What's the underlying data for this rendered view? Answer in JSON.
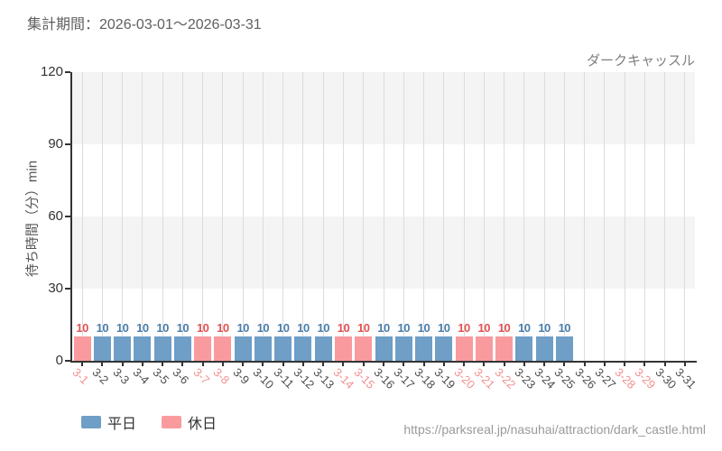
{
  "header": {
    "period_label": "集計期間：2026-03-01〜2026-03-31",
    "attraction_name": "ダークキャッスル"
  },
  "footer": {
    "source_url": "https://parksreal.jp/nasuhai/attraction/dark_castle.html"
  },
  "legend": {
    "weekday_label": "平日",
    "holiday_label": "休日",
    "position": "bottom-left"
  },
  "colors": {
    "weekday_bar": "#6f9ec6",
    "holiday_bar": "#f99b9e",
    "weekday_value_label": "#4a7dab",
    "holiday_value_label": "#e25252",
    "weekday_tick_label": "#4d4d4d",
    "holiday_tick_label": "#f29090",
    "axis": "#333333",
    "band_gray": "#f4f4f4",
    "band_white": "#ffffff",
    "gridline": "#dcdcdc"
  },
  "chart_data": {
    "type": "bar",
    "title": "",
    "xlabel": "",
    "ylabel": "待ち時間（分）min",
    "ylim": [
      0,
      120
    ],
    "yticks": [
      0,
      30,
      60,
      90,
      120
    ],
    "grid": "vertical category lines + alternating horizontal gray/white bands of 30",
    "value_labels_shown": true,
    "categories": [
      "3-1",
      "3-2",
      "3-3",
      "3-4",
      "3-5",
      "3-6",
      "3-7",
      "3-8",
      "3-9",
      "3-10",
      "3-11",
      "3-12",
      "3-13",
      "3-14",
      "3-15",
      "3-16",
      "3-17",
      "3-18",
      "3-19",
      "3-20",
      "3-21",
      "3-22",
      "3-23",
      "3-24",
      "3-25",
      "3-26",
      "3-27",
      "3-28",
      "3-29",
      "3-30",
      "3-31"
    ],
    "day_kinds": [
      "holiday",
      "weekday",
      "weekday",
      "weekday",
      "weekday",
      "weekday",
      "holiday",
      "holiday",
      "weekday",
      "weekday",
      "weekday",
      "weekday",
      "weekday",
      "holiday",
      "holiday",
      "weekday",
      "weekday",
      "weekday",
      "weekday",
      "holiday",
      "holiday",
      "holiday",
      "weekday",
      "weekday",
      "weekday",
      "weekday",
      "weekday",
      "holiday",
      "holiday",
      "weekday",
      "weekday"
    ],
    "values": [
      10,
      10,
      10,
      10,
      10,
      10,
      10,
      10,
      10,
      10,
      10,
      10,
      10,
      10,
      10,
      10,
      10,
      10,
      10,
      10,
      10,
      10,
      10,
      10,
      10,
      null,
      null,
      null,
      null,
      null,
      null
    ],
    "series": [
      {
        "name": "平日",
        "values": [
          null,
          10,
          10,
          10,
          10,
          10,
          null,
          null,
          10,
          10,
          10,
          10,
          10,
          null,
          null,
          10,
          10,
          10,
          10,
          null,
          null,
          null,
          10,
          10,
          10,
          null,
          null,
          null,
          null,
          null,
          null
        ]
      },
      {
        "name": "休日",
        "values": [
          10,
          null,
          null,
          null,
          null,
          null,
          10,
          10,
          null,
          null,
          null,
          null,
          null,
          10,
          10,
          null,
          null,
          null,
          null,
          10,
          10,
          10,
          null,
          null,
          null,
          null,
          null,
          null,
          null,
          null,
          null
        ]
      }
    ]
  }
}
